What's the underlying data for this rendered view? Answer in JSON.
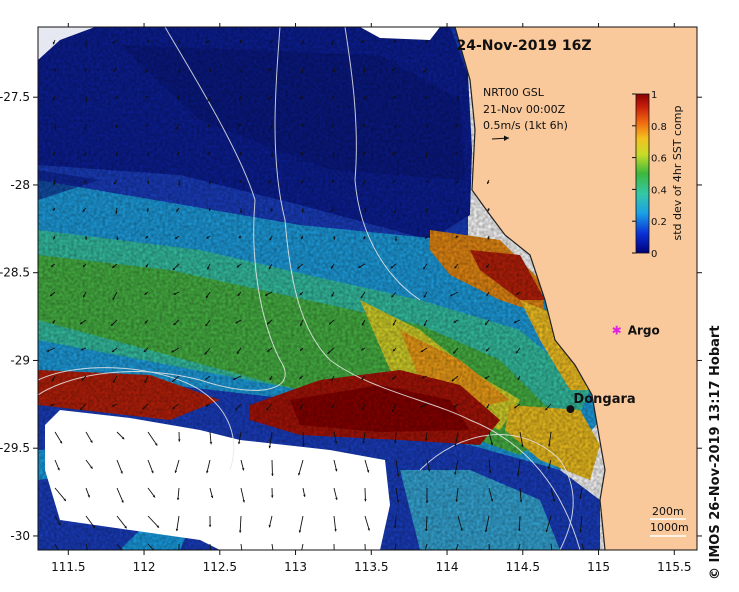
{
  "map": {
    "title": "24-Nov-2019 16Z",
    "credit": "© IMOS 26-Nov-2019 13:17 Hobart",
    "current_info": {
      "line1": "NRT00 GSL",
      "line2": "21-Nov 00:00Z",
      "line3": "0.5m/s (1kt 6h)"
    },
    "colorbar": {
      "label": "std dev of 4hr SST comp",
      "ticks": [
        "1",
        "0.8",
        "0.6",
        "0.4",
        "0.2",
        "0"
      ],
      "min": 0,
      "max": 1
    },
    "contour_legend": [
      "200m",
      "1000m"
    ],
    "places": [
      {
        "name": "Argo",
        "lon": 115.12,
        "lat": -28.83
      },
      {
        "name": "Dongara",
        "lon": 114.92,
        "lat": -29.26
      }
    ],
    "x_axis": {
      "ticks": [
        "111.5",
        "112",
        "112.5",
        "113",
        "113.5",
        "114",
        "114.5",
        "115",
        "115.5"
      ],
      "range": [
        111.3,
        115.65
      ]
    },
    "y_axis": {
      "ticks": [
        "-27.5",
        "-28",
        "-28.5",
        "-29",
        "-29.5",
        "-30"
      ],
      "range": [
        -30.08,
        -27.1
      ]
    },
    "colors": {
      "land": "#f9c89b",
      "no_data": "#ffffff"
    }
  }
}
